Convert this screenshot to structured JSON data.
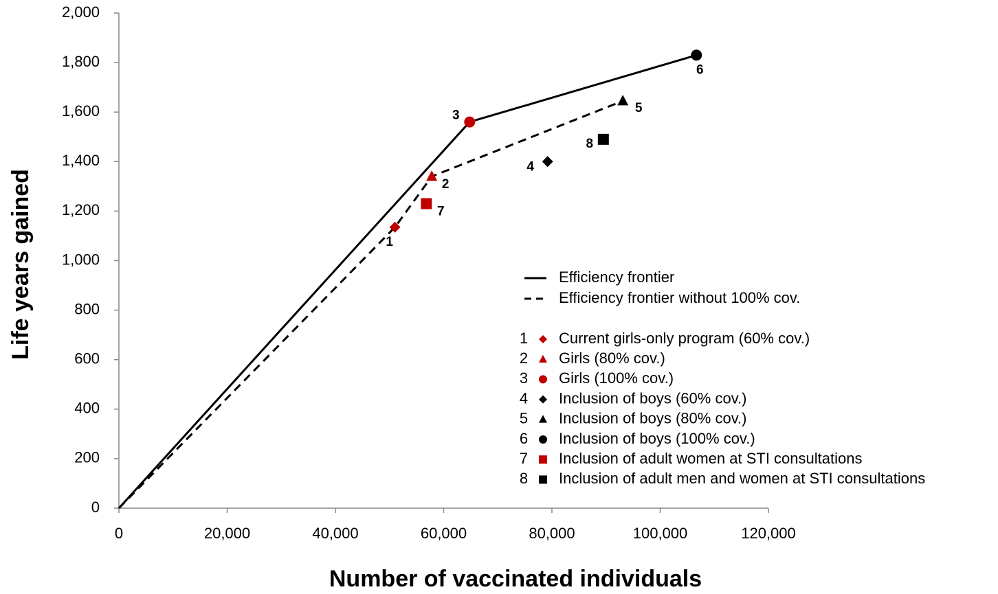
{
  "chart_data": {
    "type": "scatter",
    "xlabel": "Number of vaccinated individuals",
    "ylabel": "Life years gained",
    "xlim": [
      0,
      120000
    ],
    "ylim": [
      0,
      2000
    ],
    "xticks": [
      0,
      {
        "value": 20000,
        "label": "20,000"
      },
      {
        "value": 40000,
        "label": "40,000"
      },
      {
        "value": 60000,
        "label": "60,000"
      },
      {
        "value": 80000,
        "label": "80,000"
      },
      {
        "value": 100000,
        "label": "100,000"
      },
      {
        "value": 120000,
        "label": "120,000"
      }
    ],
    "yticks": [
      0,
      200,
      400,
      600,
      800,
      {
        "value": 1000,
        "label": "1,000"
      },
      {
        "value": 1200,
        "label": "1,200"
      },
      {
        "value": 1400,
        "label": "1,400"
      },
      {
        "value": 1600,
        "label": "1,600"
      },
      {
        "value": 1800,
        "label": "1,800"
      },
      {
        "value": 2000,
        "label": "2,000"
      }
    ],
    "grid": false,
    "lines": [
      {
        "name": "Efficiency frontier",
        "color": "#000000",
        "dash": "solid",
        "x": [
          0,
          64800,
          106700
        ],
        "values": [
          0,
          1560,
          1830
        ]
      },
      {
        "name": "Efficiency frontier without 100% cov.",
        "color": "#000000",
        "dash": "dashed",
        "x": [
          0,
          51000,
          57800,
          93100
        ],
        "values": [
          0,
          1135,
          1340,
          1645
        ]
      }
    ],
    "series": [
      {
        "label": "1",
        "name": "Current girls-only program (60% cov.)",
        "color": "#c00000",
        "marker": "diamond",
        "x": [
          51000
        ],
        "values": [
          1135
        ]
      },
      {
        "label": "2",
        "name": "Girls (80% cov.)",
        "color": "#c00000",
        "marker": "triangle",
        "x": [
          57800
        ],
        "values": [
          1340
        ]
      },
      {
        "label": "3",
        "name": "Girls (100% cov.)",
        "color": "#c00000",
        "marker": "circle",
        "x": [
          64800
        ],
        "values": [
          1560
        ]
      },
      {
        "label": "4",
        "name": "Inclusion of boys (60% cov.)",
        "color": "#000000",
        "marker": "diamond",
        "x": [
          79200
        ],
        "values": [
          1400
        ]
      },
      {
        "label": "5",
        "name": "Inclusion of boys (80% cov.)",
        "color": "#000000",
        "marker": "triangle",
        "x": [
          93100
        ],
        "values": [
          1645
        ]
      },
      {
        "label": "6",
        "name": "Inclusion of boys (100% cov.)",
        "color": "#000000",
        "marker": "circle",
        "x": [
          106700
        ],
        "values": [
          1830
        ]
      },
      {
        "label": "7",
        "name": "Inclusion of adult women at STI consultations",
        "color": "#c00000",
        "marker": "square",
        "x": [
          56800
        ],
        "values": [
          1230
        ]
      },
      {
        "label": "8",
        "name": "Inclusion of adult men and women at STI consultations",
        "color": "#000000",
        "marker": "square",
        "x": [
          89500
        ],
        "values": [
          1490
        ]
      }
    ]
  }
}
